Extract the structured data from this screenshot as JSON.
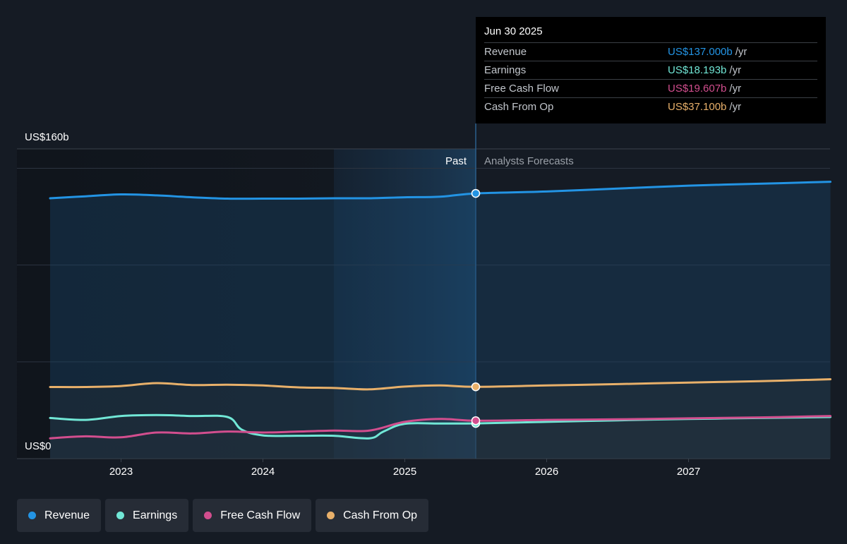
{
  "colors": {
    "revenue": "#2394e4",
    "earnings": "#71e7d6",
    "free_cash_flow": "#d24e8e",
    "cash_from_op": "#e8b06a",
    "background": "#151b24"
  },
  "tooltip": {
    "date": "Jun 30 2025",
    "rows": [
      {
        "label": "Revenue",
        "value": "US$137.000b",
        "unit": "/yr",
        "color": "#2394e4"
      },
      {
        "label": "Earnings",
        "value": "US$18.193b",
        "unit": "/yr",
        "color": "#71e7d6"
      },
      {
        "label": "Free Cash Flow",
        "value": "US$19.607b",
        "unit": "/yr",
        "color": "#d24e8e"
      },
      {
        "label": "Cash From Op",
        "value": "US$37.100b",
        "unit": "/yr",
        "color": "#e8b06a"
      }
    ]
  },
  "legend": [
    {
      "label": "Revenue",
      "color": "#2394e4"
    },
    {
      "label": "Earnings",
      "color": "#71e7d6"
    },
    {
      "label": "Free Cash Flow",
      "color": "#d24e8e"
    },
    {
      "label": "Cash From Op",
      "color": "#e8b06a"
    }
  ],
  "chart_data": {
    "type": "line",
    "ylabel_top": "US$160b",
    "ylabel_bottom": "US$0",
    "ylim": [
      0,
      160
    ],
    "xlim": [
      2022.25,
      2028.0
    ],
    "x_ticks": [
      2023,
      2024,
      2025,
      2026,
      2027
    ],
    "x_tick_labels": [
      "2023",
      "2024",
      "2025",
      "2026",
      "2027"
    ],
    "y_gridlines": [
      0,
      50,
      100,
      150
    ],
    "past_label": "Past",
    "forecast_label": "Analysts Forecasts",
    "divider_x": 2025.5,
    "highlight_start_x": 2024.5,
    "series": [
      {
        "name": "Revenue",
        "key": "revenue",
        "x": [
          2022.5,
          2022.75,
          2023.0,
          2023.25,
          2023.5,
          2023.75,
          2024.0,
          2024.25,
          2024.5,
          2024.75,
          2025.0,
          2025.25,
          2025.5,
          2026.0,
          2026.5,
          2027.0,
          2027.5,
          2028.0
        ],
        "y": [
          134.5,
          135.5,
          136.5,
          136.0,
          135.0,
          134.3,
          134.3,
          134.3,
          134.5,
          134.5,
          135.0,
          135.3,
          137.0,
          138.0,
          139.5,
          141.0,
          142.0,
          143.0
        ]
      },
      {
        "name": "Earnings",
        "key": "earnings",
        "x": [
          2022.5,
          2022.75,
          2023.0,
          2023.25,
          2023.5,
          2023.75,
          2023.85,
          2024.0,
          2024.25,
          2024.5,
          2024.75,
          2024.85,
          2025.0,
          2025.25,
          2025.5,
          2026.0,
          2026.5,
          2027.0,
          2027.5,
          2028.0
        ],
        "y": [
          21.0,
          20.0,
          22.0,
          22.5,
          22.0,
          21.5,
          15.0,
          12.0,
          11.8,
          11.8,
          10.5,
          14.0,
          18.0,
          18.1,
          18.193,
          19.0,
          19.8,
          20.5,
          21.0,
          21.5
        ]
      },
      {
        "name": "Free Cash Flow",
        "key": "free_cash_flow",
        "x": [
          2022.5,
          2022.75,
          2023.0,
          2023.25,
          2023.5,
          2023.75,
          2024.0,
          2024.25,
          2024.5,
          2024.75,
          2025.0,
          2025.25,
          2025.5,
          2026.0,
          2026.5,
          2027.0,
          2027.5,
          2028.0
        ],
        "y": [
          10.5,
          11.5,
          11.0,
          13.5,
          13.0,
          14.0,
          13.5,
          14.0,
          14.5,
          14.5,
          19.0,
          20.5,
          19.607,
          20.0,
          20.3,
          20.8,
          21.3,
          22.0
        ]
      },
      {
        "name": "Cash From Op",
        "key": "cash_from_op",
        "x": [
          2022.5,
          2022.75,
          2023.0,
          2023.25,
          2023.5,
          2023.75,
          2024.0,
          2024.25,
          2024.5,
          2024.75,
          2025.0,
          2025.25,
          2025.5,
          2026.0,
          2026.5,
          2027.0,
          2027.5,
          2028.0
        ],
        "y": [
          37.0,
          37.0,
          37.5,
          39.0,
          38.0,
          38.2,
          37.8,
          36.8,
          36.5,
          35.8,
          37.2,
          37.8,
          37.1,
          37.8,
          38.5,
          39.3,
          40.0,
          41.0
        ]
      }
    ]
  }
}
